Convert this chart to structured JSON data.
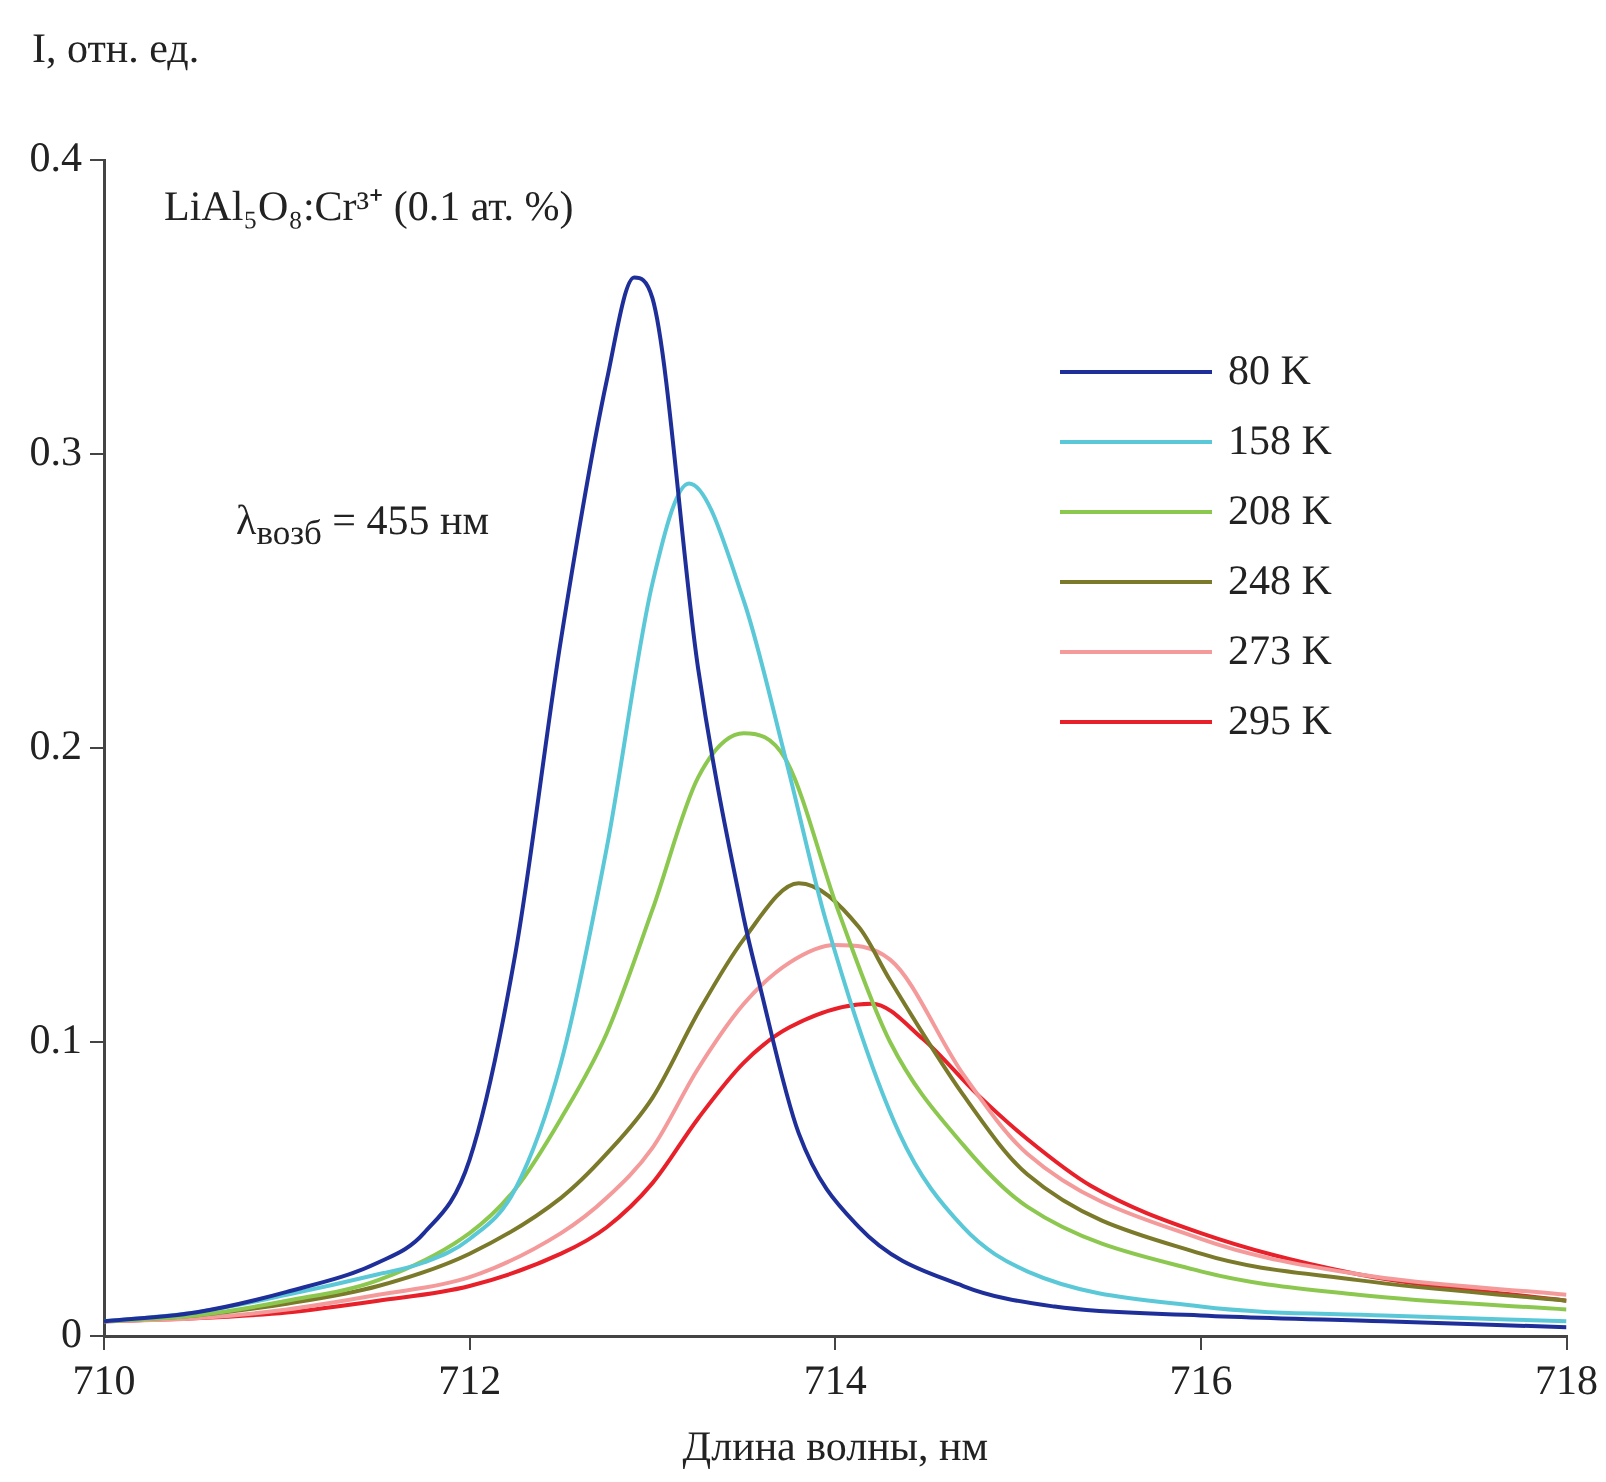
{
  "chart_data": {
    "type": "line",
    "xlabel": "Длина волны, нм",
    "ylabel": "I, отн. ед.",
    "xlim": [
      710,
      718
    ],
    "xticks": [
      710,
      712,
      714,
      716,
      718
    ],
    "ylim": [
      0,
      0.4
    ],
    "yticks": [
      0,
      0.1,
      0.2,
      0.3,
      0.4
    ],
    "grid": false,
    "legend": "top right",
    "marker": "none",
    "line_style": "solid",
    "annotations": [
      "LiAl₅O₈:Cr³⁺ (0.1 ат. %)",
      "λ$_{возб}$ = 455 нм"
    ],
    "series": [
      {
        "name": "80 K",
        "color": "#1f2f9a",
        "x": [
          710,
          710.5,
          711,
          711.5,
          711.75,
          712,
          712.25,
          712.5,
          712.75,
          712.9,
          713,
          713.25,
          713.5,
          713.58,
          713.8,
          714.13,
          714.7,
          715.2,
          716,
          717,
          718
        ],
        "values": [
          0.005,
          0.008,
          0.015,
          0.025,
          0.035,
          0.06,
          0.13,
          0.237,
          0.325,
          0.36,
          0.353,
          0.227,
          0.142,
          0.121,
          0.069,
          0.037,
          0.017,
          0.01,
          0.007,
          0.005,
          0.003
        ]
      },
      {
        "name": "158 K",
        "color": "#5bc8d8",
        "x": [
          710,
          710.5,
          711,
          711.5,
          711.75,
          712,
          712.25,
          712.5,
          712.75,
          713,
          713.2,
          713.5,
          713.73,
          713.95,
          714.35,
          714.7,
          715.05,
          716,
          717,
          718
        ],
        "values": [
          0.005,
          0.008,
          0.014,
          0.021,
          0.025,
          0.033,
          0.05,
          0.093,
          0.166,
          0.256,
          0.29,
          0.25,
          0.196,
          0.141,
          0.069,
          0.037,
          0.022,
          0.01,
          0.007,
          0.005
        ]
      },
      {
        "name": "208 K",
        "color": "#8cc850",
        "x": [
          710,
          710.5,
          711,
          711.5,
          712,
          712.25,
          712.5,
          712.75,
          713,
          713.25,
          713.5,
          713.73,
          714.02,
          714.3,
          714.7,
          715.05,
          716,
          716.86,
          718
        ],
        "values": [
          0.005,
          0.007,
          0.012,
          0.019,
          0.035,
          0.05,
          0.074,
          0.103,
          0.145,
          0.19,
          0.205,
          0.196,
          0.144,
          0.1,
          0.065,
          0.044,
          0.022,
          0.014,
          0.009
        ]
      },
      {
        "name": "248 K",
        "color": "#7a7a2a",
        "x": [
          710,
          710.5,
          711,
          711.5,
          712,
          712.5,
          712.75,
          713,
          713.25,
          713.5,
          713.8,
          714.13,
          714.3,
          714.7,
          715.05,
          716,
          716.86,
          718
        ],
        "values": [
          0.005,
          0.007,
          0.011,
          0.017,
          0.028,
          0.047,
          0.062,
          0.081,
          0.11,
          0.135,
          0.154,
          0.139,
          0.121,
          0.082,
          0.055,
          0.028,
          0.019,
          0.012
        ]
      },
      {
        "name": "273 K",
        "color": "#f49a9a",
        "x": [
          710,
          710.5,
          711,
          711.5,
          712,
          712.5,
          712.75,
          713,
          713.25,
          713.5,
          713.75,
          714,
          714.3,
          714.7,
          715.05,
          716,
          716.86,
          718
        ],
        "values": [
          0.005,
          0.006,
          0.009,
          0.014,
          0.02,
          0.035,
          0.047,
          0.064,
          0.091,
          0.113,
          0.127,
          0.133,
          0.128,
          0.089,
          0.062,
          0.033,
          0.021,
          0.014
        ]
      },
      {
        "name": "295 K",
        "color": "#e8202a",
        "x": [
          710,
          710.5,
          711,
          711.5,
          712,
          712.5,
          712.75,
          713,
          713.25,
          713.5,
          713.75,
          714.2,
          714.48,
          714.78,
          715.05,
          715.4,
          716,
          716.86,
          718
        ],
        "values": [
          0.005,
          0.006,
          0.008,
          0.012,
          0.017,
          0.028,
          0.037,
          0.052,
          0.074,
          0.093,
          0.105,
          0.113,
          0.101,
          0.082,
          0.067,
          0.051,
          0.035,
          0.021,
          0.012
        ]
      }
    ]
  }
}
